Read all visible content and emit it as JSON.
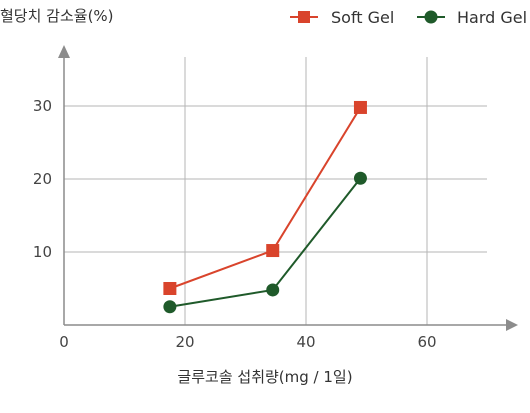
{
  "chart_data": {
    "type": "line",
    "ylabel": "혈당치 감소율(%)",
    "xlabel": "글루코솔 섭취량(mg / 1일)",
    "xlim": [
      0,
      75
    ],
    "ylim": [
      0,
      36
    ],
    "xticks": [
      0,
      20,
      40,
      60
    ],
    "yticks": [
      10,
      20,
      30
    ],
    "x_tick_labels": [
      "0",
      "20",
      "40",
      "60"
    ],
    "y_tick_labels": [
      "10",
      "20",
      "30"
    ],
    "grid": true,
    "legend_position": "top-right",
    "series": [
      {
        "name": "Soft Gel",
        "color": "#d9442c",
        "marker": "square",
        "points": [
          [
            17.5,
            5.0
          ],
          [
            34.5,
            10.2
          ],
          [
            49,
            29.8
          ]
        ]
      },
      {
        "name": "Hard Gel",
        "color": "#1f5a2a",
        "marker": "circle",
        "points": [
          [
            17.5,
            2.5
          ],
          [
            34.5,
            4.8
          ],
          [
            49,
            20.1
          ]
        ]
      }
    ]
  }
}
